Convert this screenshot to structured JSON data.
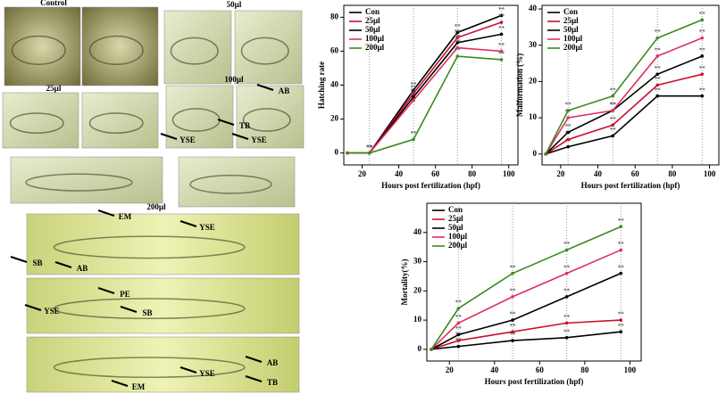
{
  "figure": {
    "panels": [
      "Control",
      "50µl",
      "25µl",
      "100µl",
      "200µl"
    ],
    "annotations": [
      "AB",
      "TB",
      "YSE",
      "YSE",
      "EM",
      "YSE",
      "SB",
      "AB",
      "PE",
      "YSE",
      "SB",
      "AB",
      "YSE",
      "TB",
      "EM"
    ]
  },
  "chart_data": [
    {
      "type": "line",
      "y_label": "Hatching rate",
      "x_label": "Hours post fertilization (hpf)",
      "annotation": "**",
      "x": [
        12,
        24,
        48,
        72,
        96
      ],
      "xlim": [
        10,
        105
      ],
      "xticks": [
        20,
        40,
        60,
        80,
        100
      ],
      "ylim": [
        -7,
        87
      ],
      "yticks": [
        0,
        20,
        40,
        60,
        80
      ],
      "legend": "top-left",
      "series": [
        {
          "name": "Con",
          "color": "#000000",
          "values": [
            0,
            0,
            37,
            71,
            81
          ]
        },
        {
          "name": "25µl",
          "color": "#c8102e",
          "values": [
            0,
            0,
            35,
            68,
            77
          ]
        },
        {
          "name": "50µl",
          "color": "#000000",
          "values": [
            0,
            0,
            33,
            65,
            70
          ]
        },
        {
          "name": "100µl",
          "color": "#e0305a",
          "values": [
            0,
            0,
            31,
            62,
            60
          ]
        },
        {
          "name": "200µl",
          "color": "#3a8a1e",
          "values": [
            0,
            0,
            8,
            57,
            55
          ]
        }
      ]
    },
    {
      "type": "line",
      "y_label": "Malformation (%)",
      "x_label": "Hours post fertilization (hpf)",
      "annotation": "**",
      "x": [
        12,
        24,
        48,
        72,
        96
      ],
      "xlim": [
        10,
        105
      ],
      "xticks": [
        20,
        40,
        60,
        80,
        100
      ],
      "ylim": [
        -3,
        41
      ],
      "yticks": [
        0,
        10,
        20,
        30,
        40
      ],
      "legend": "top-left",
      "series": [
        {
          "name": "Con",
          "color": "#000000",
          "values": [
            0,
            2,
            5,
            16,
            16
          ]
        },
        {
          "name": "25µl",
          "color": "#c8102e",
          "values": [
            0,
            4,
            8,
            19,
            22
          ]
        },
        {
          "name": "50µl",
          "color": "#000000",
          "values": [
            0,
            6,
            12,
            22,
            27
          ]
        },
        {
          "name": "100µl",
          "color": "#e0305a",
          "values": [
            0,
            10,
            12,
            27,
            32
          ]
        },
        {
          "name": "200µl",
          "color": "#3a8a1e",
          "values": [
            0,
            12,
            16,
            32,
            37
          ]
        }
      ]
    },
    {
      "type": "line",
      "y_label": "Mortality(%)",
      "x_label": "Hours post fertilization (hpf)",
      "annotation": "**",
      "x": [
        12,
        24,
        48,
        72,
        96
      ],
      "xlim": [
        10,
        105
      ],
      "xticks": [
        20,
        40,
        60,
        80,
        100
      ],
      "ylim": [
        -4,
        50
      ],
      "yticks": [
        0,
        10,
        20,
        30,
        40
      ],
      "legend": "top-left",
      "series": [
        {
          "name": "Con",
          "color": "#000000",
          "values": [
            0,
            1,
            3,
            4,
            6
          ]
        },
        {
          "name": "25µl",
          "color": "#c8102e",
          "values": [
            0,
            3,
            6,
            9,
            10
          ]
        },
        {
          "name": "50µl",
          "color": "#000000",
          "values": [
            0,
            5,
            10,
            18,
            26
          ]
        },
        {
          "name": "100µl",
          "color": "#e0305a",
          "values": [
            0,
            9,
            18,
            26,
            34
          ]
        },
        {
          "name": "200µl",
          "color": "#3a8a1e",
          "values": [
            0,
            14,
            26,
            34,
            42
          ]
        }
      ]
    }
  ]
}
